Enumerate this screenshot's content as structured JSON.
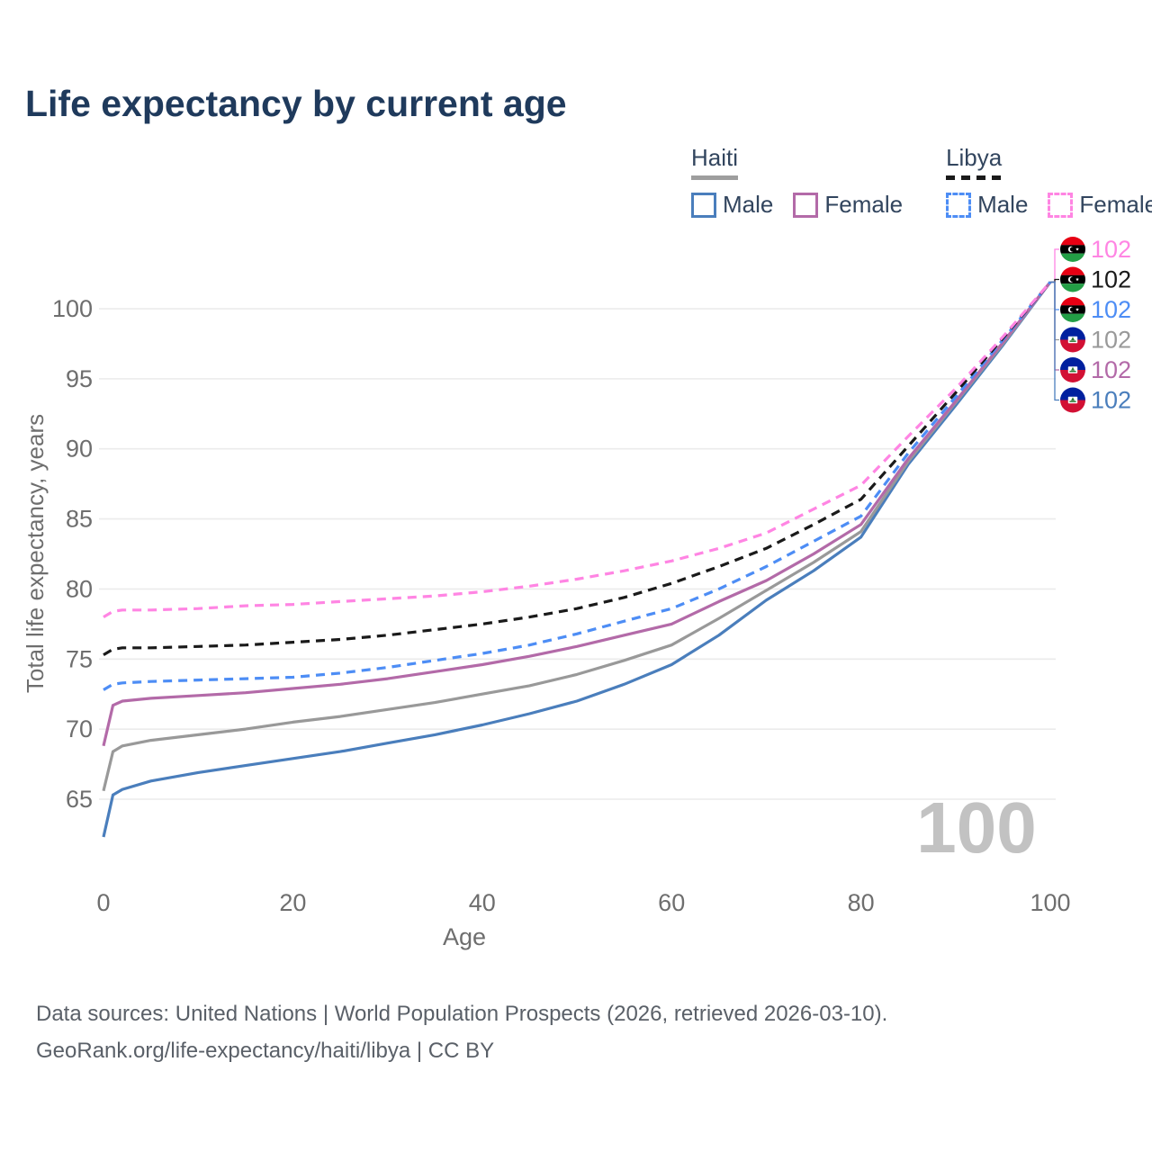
{
  "title": "Life expectancy by current age",
  "legend": {
    "groups": [
      {
        "name": "Haiti",
        "line_style": "solid",
        "line_color": "#9e9e9e",
        "items": [
          {
            "label": "Male",
            "color": "#4a7ebc"
          },
          {
            "label": "Female",
            "color": "#b36aa8"
          }
        ]
      },
      {
        "name": "Libya",
        "line_style": "dashed",
        "line_color": "#1a1a1a",
        "items": [
          {
            "label": "Male",
            "color": "#4d8df5"
          },
          {
            "label": "Female",
            "color": "#ff85e3"
          }
        ]
      }
    ]
  },
  "watermark": "100",
  "chart_data": {
    "type": "line",
    "title": "Life expectancy by current age",
    "xlabel": "Age",
    "ylabel": "Total life expectancy, years",
    "xlim": [
      0,
      100
    ],
    "ylim": [
      62,
      104
    ],
    "xticks": [
      0,
      20,
      40,
      60,
      80,
      100
    ],
    "yticks": [
      65,
      70,
      75,
      80,
      85,
      90,
      95,
      100
    ],
    "grid": "horizontal",
    "x": [
      0,
      1,
      2,
      5,
      10,
      15,
      20,
      25,
      30,
      35,
      40,
      45,
      50,
      55,
      60,
      65,
      70,
      75,
      80,
      85,
      90,
      95,
      100
    ],
    "series": [
      {
        "name": "Haiti Male",
        "country": "Haiti",
        "sex": "Male",
        "color": "#4a7ebc",
        "dash": "solid",
        "values": [
          62.3,
          65.3,
          65.7,
          66.3,
          66.9,
          67.4,
          67.9,
          68.4,
          69.0,
          69.6,
          70.3,
          71.1,
          72.0,
          73.2,
          74.6,
          76.7,
          79.2,
          81.3,
          83.7,
          88.9,
          93.1,
          97.4,
          101.9
        ]
      },
      {
        "name": "Haiti Both sexes",
        "country": "Haiti",
        "sex": "Both",
        "color": "#999999",
        "dash": "solid",
        "values": [
          65.6,
          68.4,
          68.8,
          69.2,
          69.6,
          70.0,
          70.5,
          70.9,
          71.4,
          71.9,
          72.5,
          73.1,
          73.9,
          74.9,
          76.0,
          77.9,
          79.9,
          81.9,
          84.1,
          89.1,
          93.3,
          97.5,
          101.9
        ]
      },
      {
        "name": "Haiti Female",
        "country": "Haiti",
        "sex": "Female",
        "color": "#b36aa8",
        "dash": "solid",
        "values": [
          68.8,
          71.7,
          72.0,
          72.2,
          72.4,
          72.6,
          72.9,
          73.2,
          73.6,
          74.1,
          74.6,
          75.2,
          75.9,
          76.7,
          77.5,
          79.1,
          80.6,
          82.5,
          84.6,
          89.3,
          93.4,
          97.6,
          101.9
        ]
      },
      {
        "name": "Libya Male",
        "country": "Libya",
        "sex": "Male",
        "color": "#4d8df5",
        "dash": "dashed",
        "values": [
          72.8,
          73.2,
          73.3,
          73.4,
          73.5,
          73.6,
          73.7,
          74.0,
          74.4,
          74.9,
          75.4,
          76.0,
          76.8,
          77.7,
          78.6,
          80.0,
          81.6,
          83.4,
          85.2,
          89.7,
          93.7,
          97.8,
          101.9
        ]
      },
      {
        "name": "Libya Both sexes",
        "country": "Libya",
        "sex": "Both",
        "color": "#1a1a1a",
        "dash": "dashed",
        "values": [
          75.3,
          75.7,
          75.8,
          75.8,
          75.9,
          76.0,
          76.2,
          76.4,
          76.7,
          77.1,
          77.5,
          78.0,
          78.6,
          79.4,
          80.4,
          81.6,
          82.9,
          84.6,
          86.4,
          90.2,
          94.0,
          97.9,
          101.9
        ]
      },
      {
        "name": "Libya Female",
        "country": "Libya",
        "sex": "Female",
        "color": "#ff85e3",
        "dash": "dashed",
        "values": [
          78.0,
          78.4,
          78.5,
          78.5,
          78.6,
          78.8,
          78.9,
          79.1,
          79.3,
          79.5,
          79.8,
          80.2,
          80.7,
          81.3,
          82.0,
          82.9,
          84.0,
          85.7,
          87.4,
          90.9,
          94.3,
          98.0,
          101.9
        ]
      }
    ],
    "end_labels": [
      {
        "flag": "libya",
        "value": "102",
        "color": "#ff85e3"
      },
      {
        "flag": "libya",
        "value": "102",
        "color": "#1a1a1a"
      },
      {
        "flag": "libya",
        "value": "102",
        "color": "#4d8df5"
      },
      {
        "flag": "haiti",
        "value": "102",
        "color": "#999999"
      },
      {
        "flag": "haiti",
        "value": "102",
        "color": "#b36aa8"
      },
      {
        "flag": "haiti",
        "value": "102",
        "color": "#4a7ebc"
      }
    ]
  },
  "footer": {
    "line1": "Data sources: United Nations | World Population Prospects (2026, retrieved 2026-03-10).",
    "line2": "GeoRank.org/life-expectancy/haiti/libya | CC BY"
  }
}
